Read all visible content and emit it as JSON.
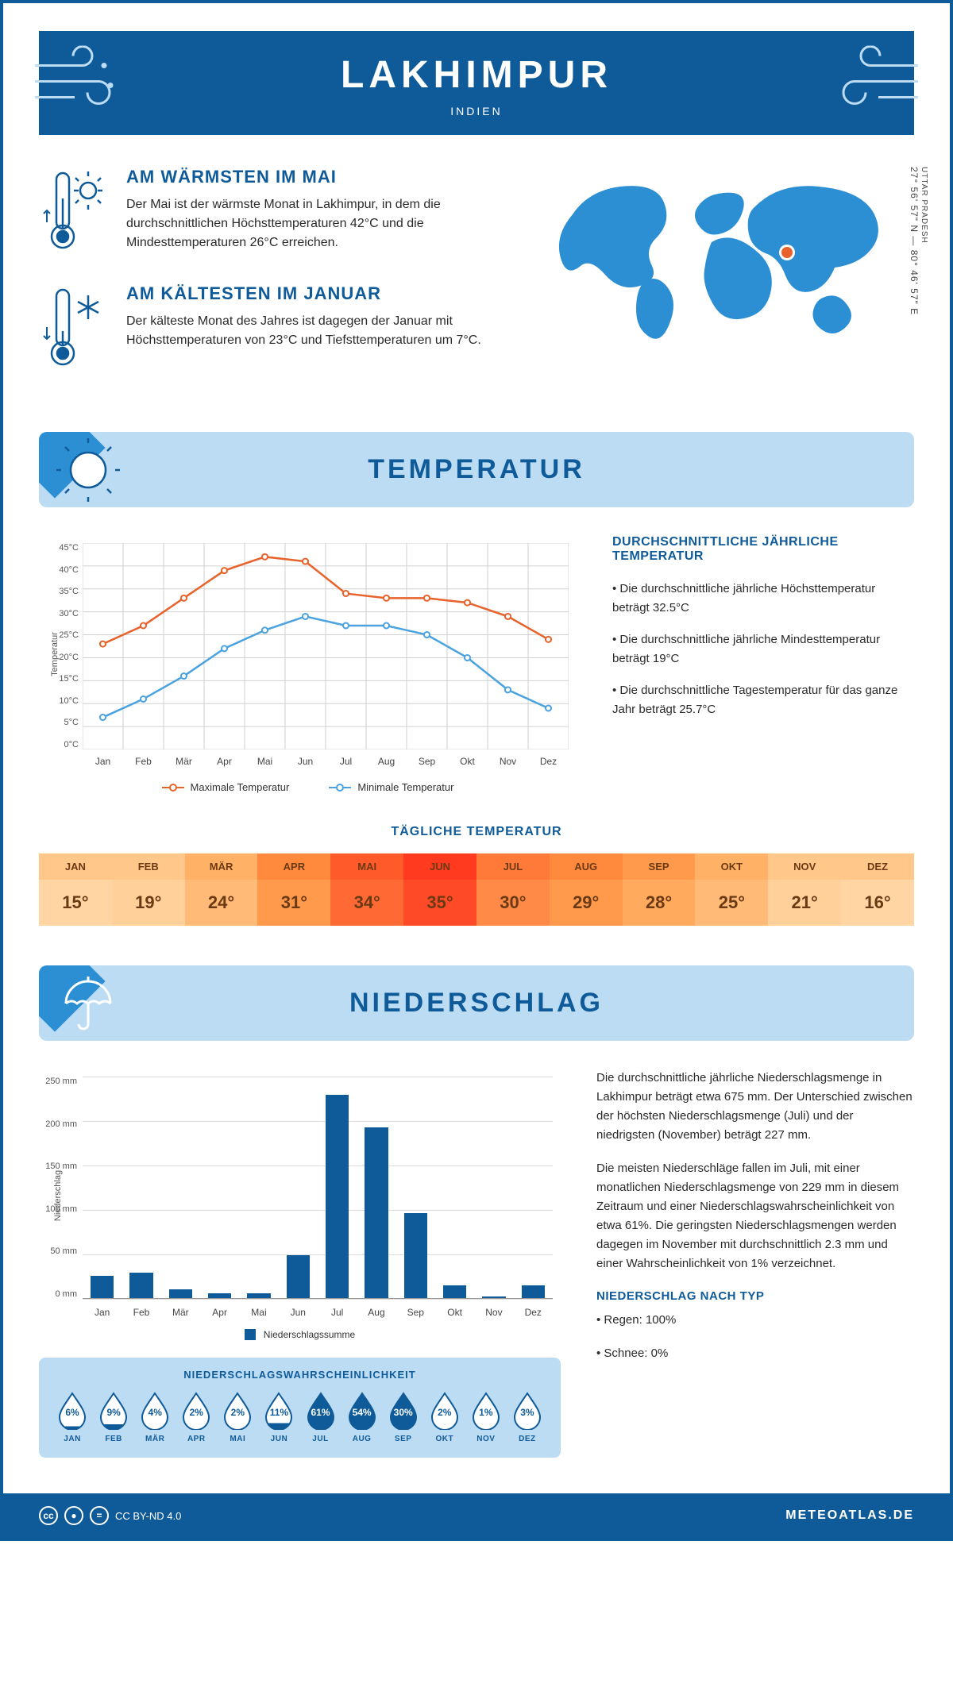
{
  "header": {
    "city": "LAKHIMPUR",
    "country": "INDIEN"
  },
  "coordinates": {
    "region": "UTTAR PRADESH",
    "text": "27° 56' 57\" N — 80° 46' 57\" E"
  },
  "facts": {
    "warmest": {
      "title": "AM WÄRMSTEN IM MAI",
      "text": "Der Mai ist der wärmste Monat in Lakhimpur, in dem die durchschnittlichen Höchsttemperaturen 42°C und die Mindesttemperaturen 26°C erreichen."
    },
    "coldest": {
      "title": "AM KÄLTESTEN IM JANUAR",
      "text": "Der kälteste Monat des Jahres ist dagegen der Januar mit Höchsttemperaturen von 23°C und Tiefsttemperaturen um 7°C."
    }
  },
  "temperature_section": {
    "title": "TEMPERATUR",
    "chart": {
      "type": "line",
      "months": [
        "Jan",
        "Feb",
        "Mär",
        "Apr",
        "Mai",
        "Jun",
        "Jul",
        "Aug",
        "Sep",
        "Okt",
        "Nov",
        "Dez"
      ],
      "series": {
        "max": {
          "label": "Maximale Temperatur",
          "color": "#e8632c",
          "values": [
            23,
            27,
            33,
            39,
            42,
            41,
            34,
            33,
            33,
            32,
            29,
            24
          ]
        },
        "min": {
          "label": "Minimale Temperatur",
          "color": "#4aa3e0",
          "values": [
            7,
            11,
            16,
            22,
            26,
            29,
            27,
            27,
            25,
            20,
            13,
            9
          ]
        }
      },
      "y_axis": {
        "label": "Temperatur",
        "ticks": [
          0,
          5,
          10,
          15,
          20,
          25,
          30,
          35,
          40,
          45
        ],
        "suffix": "°C"
      },
      "grid_color": "#d0d0d0",
      "line_width": 2.5,
      "marker_radius": 3.5,
      "background": "#ffffff"
    },
    "info": {
      "title": "DURCHSCHNITTLICHE JÄHRLICHE TEMPERATUR",
      "bullets": [
        "Die durchschnittliche jährliche Höchsttemperatur beträgt 32.5°C",
        "Die durchschnittliche jährliche Mindesttemperatur beträgt 19°C",
        "Die durchschnittliche Tagestemperatur für das ganze Jahr beträgt 25.7°C"
      ]
    },
    "daily": {
      "title": "TÄGLICHE TEMPERATUR",
      "months": [
        "JAN",
        "FEB",
        "MÄR",
        "APR",
        "MAI",
        "JUN",
        "JUL",
        "AUG",
        "SEP",
        "OKT",
        "NOV",
        "DEZ"
      ],
      "values": [
        "15°",
        "19°",
        "24°",
        "31°",
        "34°",
        "35°",
        "30°",
        "29°",
        "28°",
        "25°",
        "21°",
        "16°"
      ],
      "header_colors": [
        "#ffc78a",
        "#ffc78a",
        "#ffb265",
        "#ff8a3e",
        "#ff5a2a",
        "#ff3a1f",
        "#ff7a38",
        "#ff8a3e",
        "#ff9a4d",
        "#ffb265",
        "#ffc78a",
        "#ffc78a"
      ],
      "value_colors": [
        "#ffd6a3",
        "#ffd09a",
        "#ffba78",
        "#ff9a4d",
        "#ff6a34",
        "#ff4a28",
        "#ff8a47",
        "#ff9a4d",
        "#ffaa5c",
        "#ffba78",
        "#ffd09a",
        "#ffd6a3"
      ],
      "text_color": "#6b3a14"
    }
  },
  "precip_section": {
    "title": "NIEDERSCHLAG",
    "chart": {
      "type": "bar",
      "months": [
        "Jan",
        "Feb",
        "Mär",
        "Apr",
        "Mai",
        "Jun",
        "Jul",
        "Aug",
        "Sep",
        "Okt",
        "Nov",
        "Dez"
      ],
      "values": [
        25,
        29,
        10,
        5,
        5,
        48,
        229,
        193,
        96,
        14,
        2,
        14
      ],
      "bar_color": "#0f5b99",
      "y_axis": {
        "label": "Niederschlag",
        "ticks": [
          0,
          50,
          100,
          150,
          200,
          250
        ],
        "suffix": " mm",
        "max": 250
      },
      "legend_label": "Niederschlagssumme",
      "grid_color": "#dddddd"
    },
    "text": {
      "p1": "Die durchschnittliche jährliche Niederschlagsmenge in Lakhimpur beträgt etwa 675 mm. Der Unterschied zwischen der höchsten Niederschlagsmenge (Juli) und der niedrigsten (November) beträgt 227 mm.",
      "p2": "Die meisten Niederschläge fallen im Juli, mit einer monatlichen Niederschlagsmenge von 229 mm in diesem Zeitraum und einer Niederschlagswahrscheinlichkeit von etwa 61%. Die geringsten Niederschlagsmengen werden dagegen im November mit durchschnittlich 2.3 mm und einer Wahrscheinlichkeit von 1% verzeichnet.",
      "type_title": "NIEDERSCHLAG NACH TYP",
      "type_bullets": [
        "Regen: 100%",
        "Schnee: 0%"
      ]
    },
    "probability": {
      "title": "NIEDERSCHLAGSWAHRSCHEINLICHKEIT",
      "months": [
        "JAN",
        "FEB",
        "MÄR",
        "APR",
        "MAI",
        "JUN",
        "JUL",
        "AUG",
        "SEP",
        "OKT",
        "NOV",
        "DEZ"
      ],
      "values": [
        6,
        9,
        4,
        2,
        2,
        11,
        61,
        54,
        30,
        2,
        1,
        3
      ],
      "fill_color": "#0f5b99",
      "outline_color": "#0f5b99",
      "light_text": "#ffffff",
      "dark_text": "#0f5b99"
    }
  },
  "footer": {
    "license": "CC BY-ND 4.0",
    "brand": "METEOATLAS.DE"
  },
  "colors": {
    "primary": "#0f5b99",
    "light_blue": "#bcdcf4",
    "accent_blue": "#2c8fd4",
    "continent": "#2c8fd4",
    "marker": "#e8632c"
  }
}
